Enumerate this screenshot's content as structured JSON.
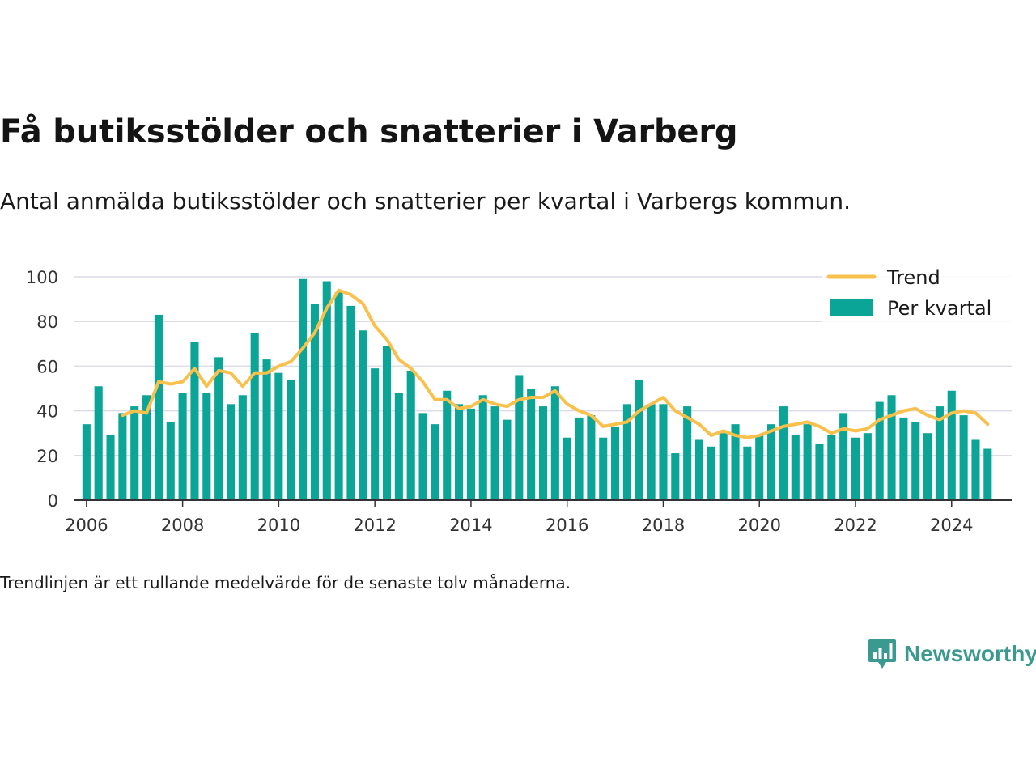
{
  "title": "Få butiksstölder och snatterier i Varberg",
  "subtitle": "Antal anmälda butiksstölder och snatterier per kvartal i Varbergs kommun.",
  "note": "Trendlinjen är ett rullande medelvärde för de senaste tolv månaderna.",
  "brand": {
    "name": "Newsworthy",
    "icon": "newsworthy-logo-icon"
  },
  "colors": {
    "bars": "#0aa596",
    "trend": "#f9c04c",
    "grid": "#dcdce6",
    "axis": "#333333"
  },
  "chart_data": {
    "type": "bar",
    "x_unit": "year (quarters as fractional years)",
    "ylim": [
      0,
      100
    ],
    "yticks": [
      0,
      20,
      40,
      60,
      80,
      100
    ],
    "xticks": [
      2006,
      2008,
      2010,
      2012,
      2014,
      2016,
      2018,
      2020,
      2022,
      2024
    ],
    "grid": true,
    "legend_position": "top-right",
    "legend": [
      "Trend",
      "Per kvartal"
    ],
    "series": [
      {
        "name": "Per kvartal",
        "type": "bar",
        "x_start": 2006.0,
        "x_step": 0.25,
        "values": [
          34,
          51,
          29,
          39,
          42,
          47,
          83,
          35,
          48,
          71,
          48,
          64,
          43,
          47,
          75,
          63,
          57,
          54,
          99,
          88,
          98,
          93,
          87,
          76,
          59,
          69,
          48,
          58,
          39,
          34,
          49,
          43,
          41,
          47,
          42,
          36,
          56,
          50,
          42,
          51,
          28,
          37,
          38,
          28,
          33,
          43,
          54,
          43,
          43,
          21,
          42,
          27,
          24,
          30,
          34,
          24,
          29,
          34,
          42,
          29,
          34,
          25,
          29,
          39,
          28,
          30,
          44,
          47,
          37,
          35,
          30,
          42,
          49,
          38,
          27,
          23
        ]
      },
      {
        "name": "Trend",
        "type": "line",
        "x_start": 2006.75,
        "x_step": 0.25,
        "values": [
          38,
          40,
          39,
          53,
          52,
          53,
          59,
          51,
          58,
          57,
          51,
          57,
          57,
          60,
          62,
          68,
          75,
          86,
          94,
          92,
          88,
          78,
          72,
          63,
          59,
          53,
          45,
          45,
          41,
          42,
          45,
          43,
          42,
          45,
          46,
          46,
          49,
          43,
          40,
          38,
          33,
          34,
          35,
          40,
          43,
          46,
          40,
          37,
          34,
          29,
          31,
          29,
          28,
          29,
          31,
          33,
          34,
          35,
          33,
          30,
          32,
          31,
          32,
          36,
          38,
          40,
          41,
          38,
          36,
          39,
          40,
          39,
          34
        ]
      }
    ]
  }
}
